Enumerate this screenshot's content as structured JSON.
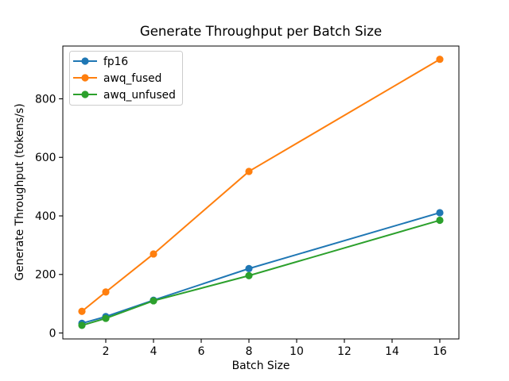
{
  "chart_data": {
    "type": "line",
    "title": "Generate Throughput per Batch Size",
    "xlabel": "Batch Size",
    "ylabel": "Generate Throughput (tokens/s)",
    "x": [
      1,
      2,
      4,
      8,
      16
    ],
    "series": [
      {
        "name": "fp16",
        "color": "#1f77b4",
        "marker": "circle",
        "values": [
          33,
          56,
          112,
          220,
          411
        ]
      },
      {
        "name": "awq_fused",
        "color": "#ff7f0e",
        "marker": "circle",
        "values": [
          74,
          140,
          270,
          552,
          935
        ]
      },
      {
        "name": "awq_unfused",
        "color": "#2ca02c",
        "marker": "circle",
        "values": [
          26,
          50,
          110,
          196,
          385
        ]
      }
    ],
    "x_ticks": [
      2,
      4,
      6,
      8,
      10,
      12,
      14,
      16
    ],
    "y_ticks": [
      0,
      200,
      400,
      600,
      800
    ],
    "xlim": [
      0.2,
      16.8
    ],
    "ylim": [
      -20.3,
      980.3
    ],
    "grid": false,
    "legend": {
      "position": "upper left",
      "entries": [
        "fp16",
        "awq_fused",
        "awq_unfused"
      ],
      "border_color": "#cccccc",
      "background": "#ffffff"
    },
    "axis_color": "#000000",
    "plot_background": "#ffffff"
  }
}
